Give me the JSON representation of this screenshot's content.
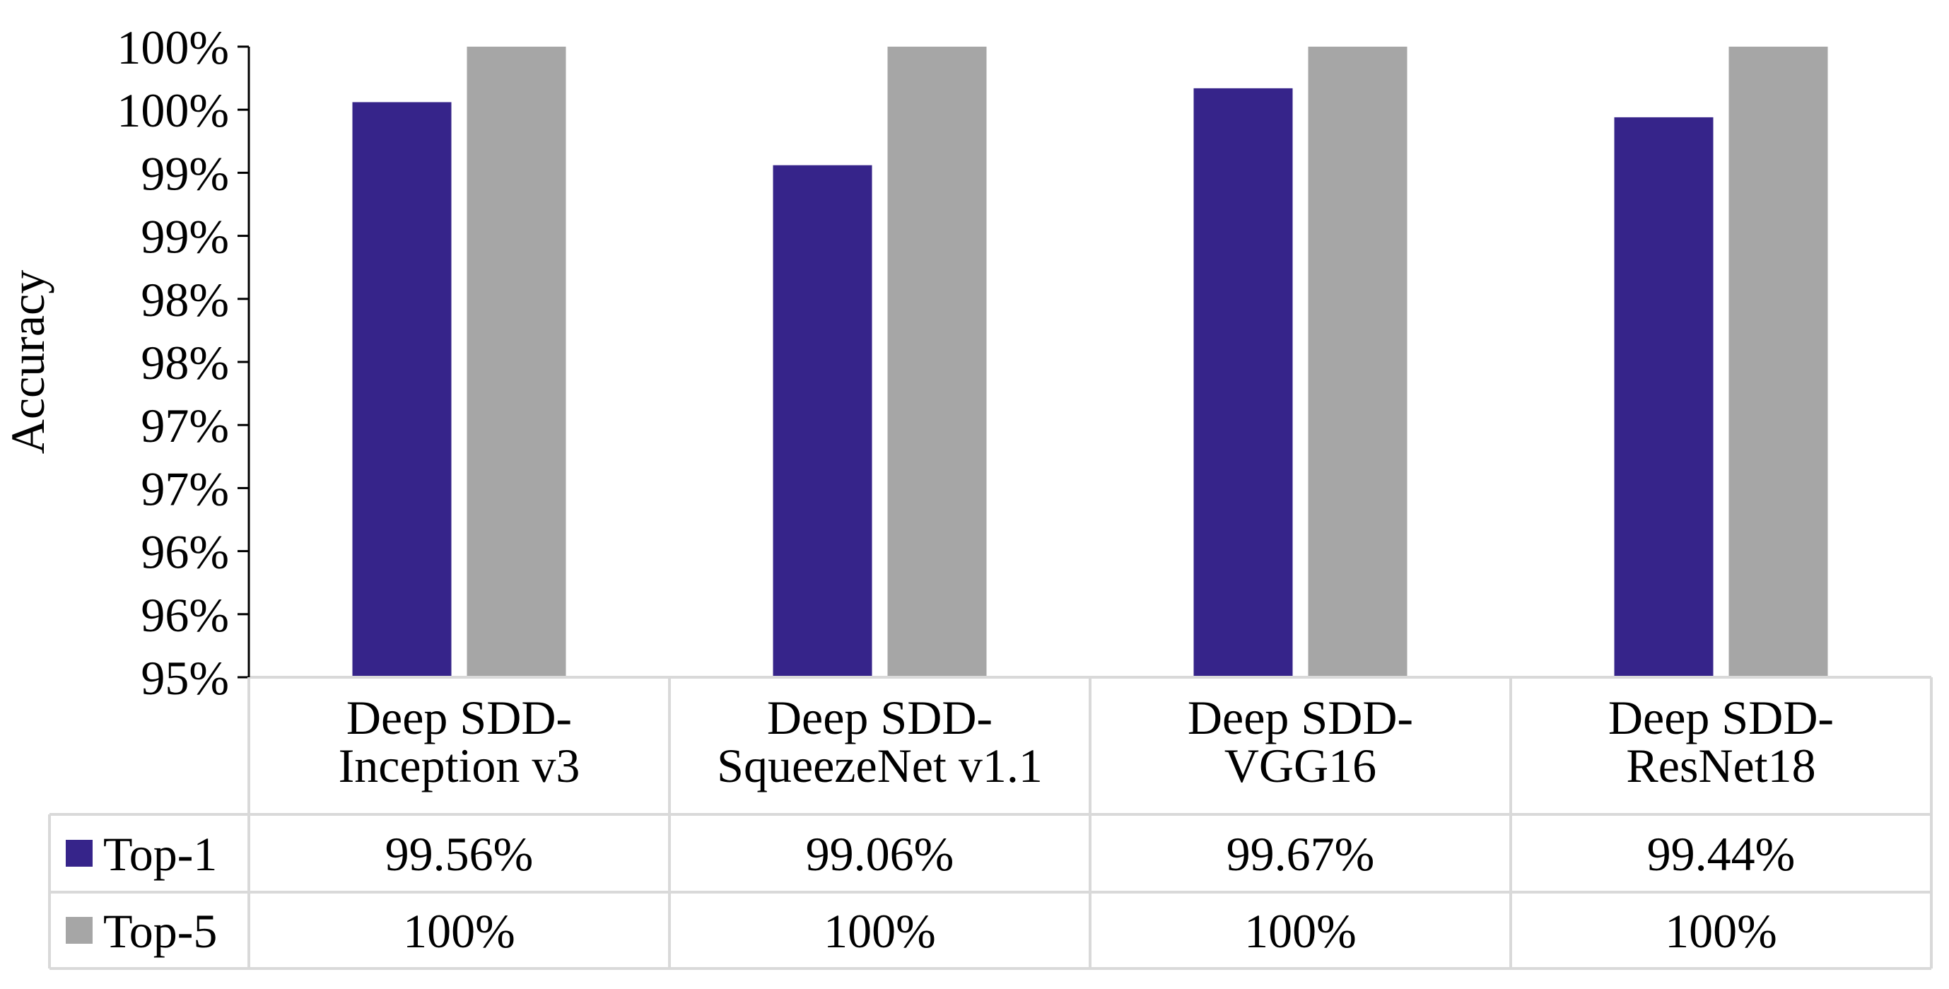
{
  "chart_data": {
    "type": "bar",
    "title": "",
    "xlabel": "",
    "ylabel": "Accuracy",
    "ylim": [
      95,
      100
    ],
    "y_ticks": [
      "95%",
      "96%",
      "96%",
      "97%",
      "97%",
      "98%",
      "98%",
      "99%",
      "99%",
      "100%",
      "100%"
    ],
    "categories": [
      [
        "Deep SDD-",
        "Inception v3"
      ],
      [
        "Deep SDD-",
        "SqueezeNet v1.1"
      ],
      [
        "Deep SDD-",
        "VGG16"
      ],
      [
        "Deep SDD-",
        "ResNet18"
      ]
    ],
    "series": [
      {
        "name": "Top-1",
        "color": "#36248A",
        "values": [
          99.56,
          99.06,
          99.67,
          99.44
        ],
        "labels": [
          "99.56%",
          "99.06%",
          "99.67%",
          "99.44%"
        ]
      },
      {
        "name": "Top-5",
        "color": "#A6A6A6",
        "values": [
          100,
          100,
          100,
          100
        ],
        "labels": [
          "100%",
          "100%",
          "100%",
          "100%"
        ]
      }
    ],
    "grid": false,
    "legend": "data-table"
  }
}
